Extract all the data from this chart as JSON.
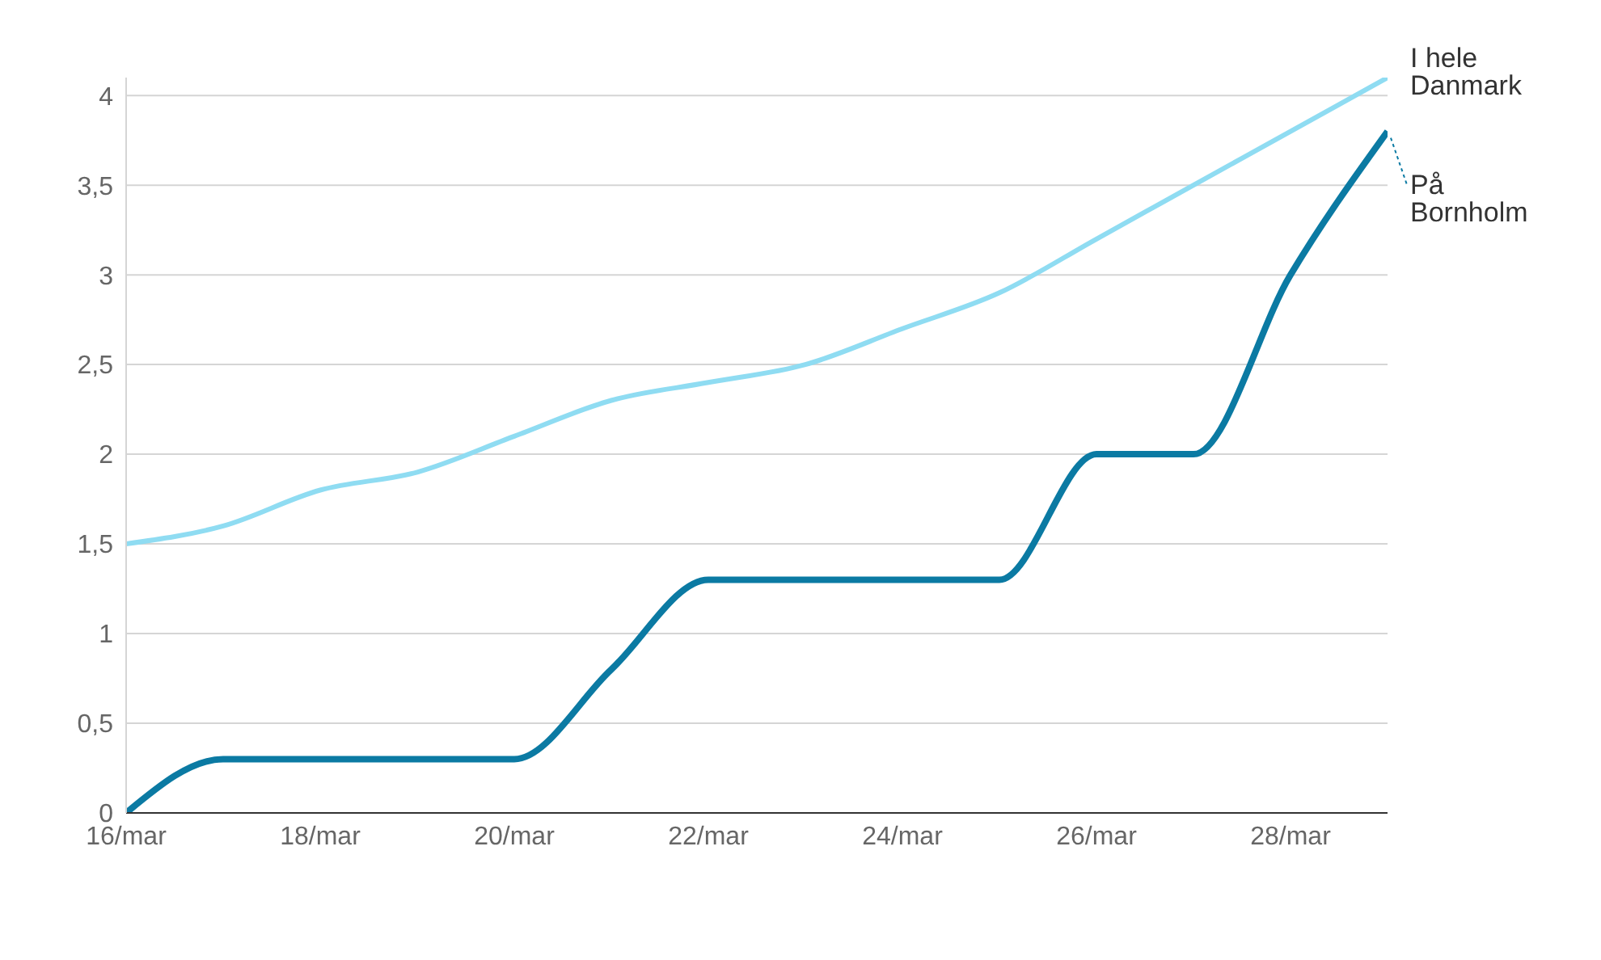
{
  "chart_data": {
    "type": "line",
    "x": [
      "--03-16",
      "--03-17",
      "--03-18",
      "--03-19",
      "--03-20",
      "--03-21",
      "--03-22",
      "--03-23",
      "--03-24",
      "--03-25",
      "--03-26",
      "--03-27",
      "--03-28",
      "--03-29"
    ],
    "series": [
      {
        "name": "I hele Danmark",
        "color": "#8fdcf2",
        "values": [
          1.5,
          1.6,
          1.8,
          1.9,
          2.1,
          2.3,
          2.4,
          2.5,
          2.7,
          2.9,
          3.2,
          3.5,
          3.8,
          4.1
        ]
      },
      {
        "name": "På Bornholm",
        "color": "#0b7aa3",
        "values": [
          0,
          0.3,
          0.3,
          0.3,
          0.3,
          0.8,
          1.3,
          1.3,
          1.3,
          1.3,
          2.0,
          2.0,
          3.0,
          3.8
        ]
      }
    ],
    "xticks": [
      {
        "value": "--03-16",
        "label": "16/mar"
      },
      {
        "value": "--03-18",
        "label": "18/mar"
      },
      {
        "value": "--03-20",
        "label": "20/mar"
      },
      {
        "value": "--03-22",
        "label": "22/mar"
      },
      {
        "value": "--03-24",
        "label": "24/mar"
      },
      {
        "value": "--03-26",
        "label": "26/mar"
      },
      {
        "value": "--03-28",
        "label": "28/mar"
      }
    ],
    "xlim": [
      "--03-16",
      "--03-29"
    ],
    "ylim": [
      0,
      4.1
    ],
    "yticks": [
      0,
      {
        "value": 0.5,
        "label": "0,5"
      },
      1,
      {
        "value": 1.5,
        "label": "1,5"
      },
      2,
      {
        "value": 2.5,
        "label": "2,5"
      },
      3,
      {
        "value": 3.5,
        "label": "3,5"
      },
      4
    ],
    "grid": "y",
    "marker": "none",
    "line_style": "solid",
    "legend": "right"
  }
}
